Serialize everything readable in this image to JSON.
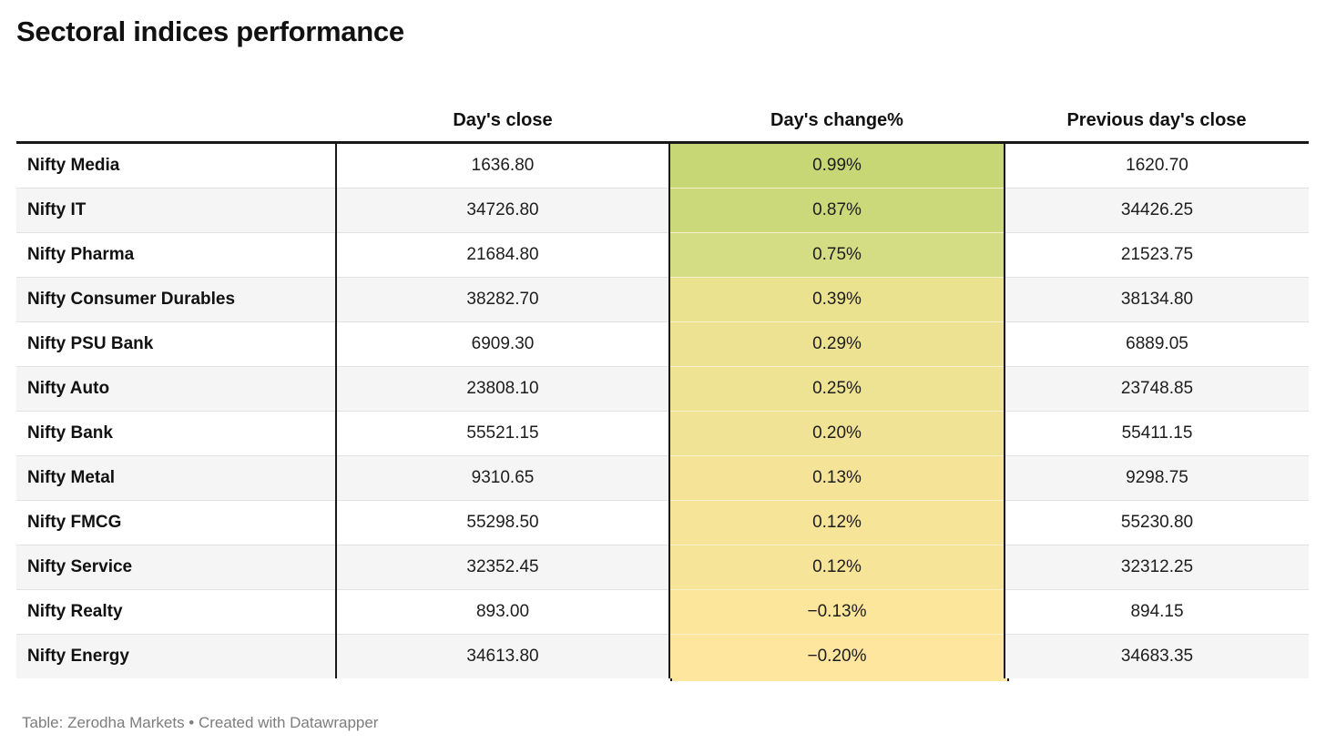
{
  "title": "Sectoral indices performance",
  "footer": "Table: Zerodha Markets • Created with Datawrapper",
  "chart_data": {
    "type": "table",
    "title": "Sectoral indices performance",
    "columns": [
      "",
      "Day's close",
      "Day's change%",
      "Previous day's close"
    ],
    "rows": [
      [
        "Nifty Media",
        "1636.80",
        "0.99%",
        "1620.70"
      ],
      [
        "Nifty IT",
        "34726.80",
        "0.87%",
        "34426.25"
      ],
      [
        "Nifty Pharma",
        "21684.80",
        "0.75%",
        "21523.75"
      ],
      [
        "Nifty Consumer Durables",
        "38282.70",
        "0.39%",
        "38134.80"
      ],
      [
        "Nifty PSU Bank",
        "6909.30",
        "0.29%",
        "6889.05"
      ],
      [
        "Nifty Auto",
        "23808.10",
        "0.25%",
        "23748.85"
      ],
      [
        "Nifty Bank",
        "55521.15",
        "0.20%",
        "55411.15"
      ],
      [
        "Nifty Metal",
        "9310.65",
        "0.13%",
        "9298.75"
      ],
      [
        "Nifty FMCG",
        "55298.50",
        "0.12%",
        "55230.80"
      ],
      [
        "Nifty Service",
        "32352.45",
        "0.12%",
        "32312.25"
      ],
      [
        "Nifty Realty",
        "893.00",
        "−0.13%",
        "894.15"
      ],
      [
        "Nifty Energy",
        "34613.80",
        "−0.20%",
        "34683.35"
      ]
    ],
    "heatmap_column": "Day's change%",
    "change_colors": [
      "#c7d776",
      "#ccd97b",
      "#d5dd84",
      "#eae28f",
      "#ece292",
      "#eee293",
      "#f1e395",
      "#f5e497",
      "#f6e498",
      "#f6e498",
      "#fce69c",
      "#ffe69e"
    ],
    "heatmap_scale": {
      "high_color": "#c7d776",
      "low_color": "#ffe69e"
    },
    "source_note": "Table: Zerodha Markets",
    "credit": "Created with Datawrapper"
  }
}
